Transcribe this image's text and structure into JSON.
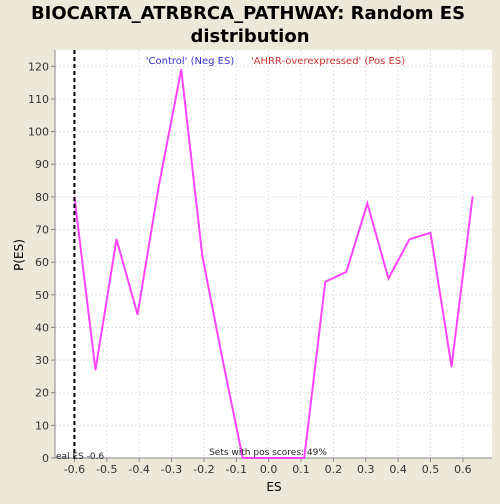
{
  "title_line1": "BIOCARTA_ATRBRCA_PATHWAY: Random ES",
  "title_line2": "distribution",
  "legend": {
    "neg_label": "'Control' (Neg ES)",
    "pos_label": "'AHRR-overexpressed' (Pos ES)"
  },
  "annotations": {
    "real_es": "eal ES -0.6",
    "pos_scores": "Sets with pos scores: 49%"
  },
  "colors": {
    "background": "#ece9d8",
    "plot_bg": "#ffffff",
    "line": "#ff44ff",
    "grid": "#e0e0e0",
    "marker": "#000000"
  },
  "chart_data": {
    "type": "line",
    "xlabel": "ES",
    "ylabel": "P(ES)",
    "xlim": [
      -0.66,
      0.69
    ],
    "ylim": [
      0,
      125
    ],
    "x_ticks": [
      -0.6,
      -0.5,
      -0.4,
      -0.3,
      -0.2,
      -0.1,
      0.0,
      0.1,
      0.2,
      0.3,
      0.4,
      0.5,
      0.6
    ],
    "x_tick_labels": [
      "-0.6",
      "-0.5",
      "-0.4",
      "-0.3",
      "-0.2",
      "-0.1",
      "0.0",
      "0.1",
      "0.2",
      "0.3",
      "0.4",
      "0.5",
      "0.6"
    ],
    "y_ticks": [
      0,
      10,
      20,
      30,
      40,
      50,
      60,
      70,
      80,
      90,
      100,
      110,
      120
    ],
    "grid": true,
    "real_es": -0.6,
    "series": [
      {
        "x": [
          -0.6,
          -0.535,
          -0.47,
          -0.405,
          -0.34,
          -0.27,
          -0.205,
          -0.14,
          -0.08,
          0.0,
          0.05,
          0.11,
          0.175,
          0.24,
          0.305,
          0.37,
          0.435,
          0.5,
          0.565,
          0.63
        ],
        "y": [
          80,
          27,
          67,
          44,
          83,
          119,
          62,
          29,
          0,
          0,
          0,
          0,
          54,
          57,
          78,
          55,
          67,
          69,
          28,
          80
        ]
      }
    ]
  }
}
